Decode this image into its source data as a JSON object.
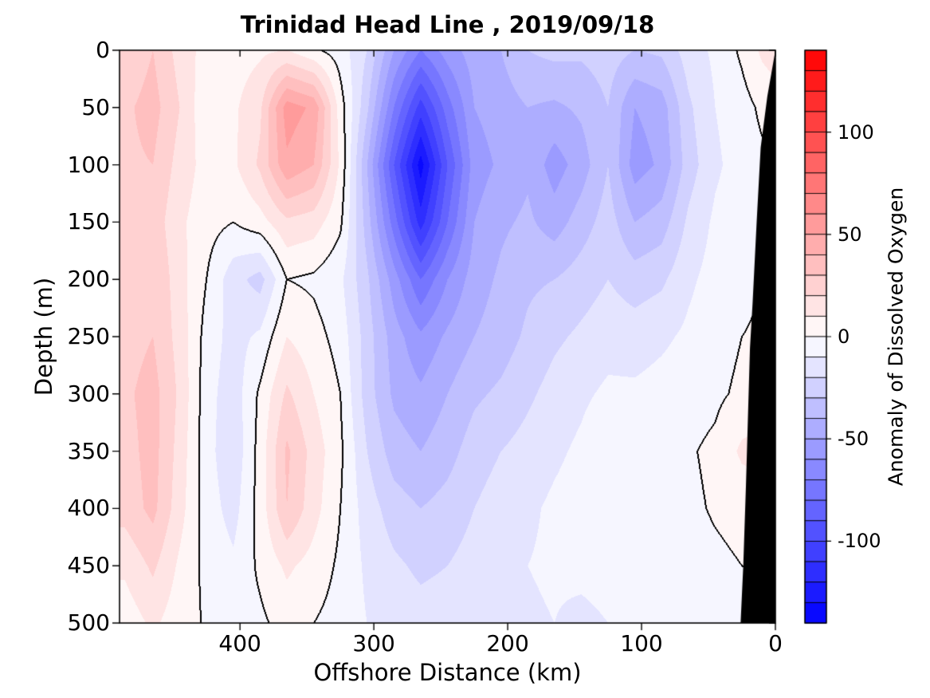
{
  "title": "Trinidad Head Line , 2019/09/18",
  "axes": {
    "xlabel": "Offshore Distance (km)",
    "ylabel": "Depth (m)",
    "x_tick_labels": [
      "400",
      "300",
      "200",
      "100",
      "0"
    ],
    "x_tick_values": [
      400,
      300,
      200,
      100,
      0
    ],
    "y_tick_labels": [
      "0",
      "50",
      "100",
      "150",
      "200",
      "250",
      "300",
      "350",
      "400",
      "450",
      "500"
    ],
    "y_tick_values": [
      0,
      50,
      100,
      150,
      200,
      250,
      300,
      350,
      400,
      450,
      500
    ]
  },
  "colorbar": {
    "label": "Anomaly of Dissolved Oxygen",
    "tick_labels": [
      "100",
      "50",
      "0",
      "-50",
      "-100"
    ],
    "tick_values": [
      100,
      50,
      0,
      -50,
      -100
    ],
    "vmin": -140,
    "vmax": 140,
    "step": 10,
    "n_segments": 28,
    "positive_color": "#ff0000",
    "negative_color": "#0000ff",
    "zero_color": "#ffffff",
    "border_color": "#000000"
  },
  "chart_data": {
    "type": "heatmap",
    "subtype": "filled_contour_section",
    "title": "Trinidad Head Line , 2019/09/18",
    "xlabel": "Offshore Distance (km)",
    "ylabel": "Depth (m)",
    "zlabel": "Anomaly of Dissolved Oxygen",
    "xlim": [
      490,
      0
    ],
    "ylim": [
      0,
      500
    ],
    "x_axis_reversed": true,
    "depth_axis_down": true,
    "contour_interval": 10,
    "contour_line_levels": [
      0
    ],
    "contour_line_color": "#000000",
    "land_color": "#000000",
    "x_km": [
      486,
      465,
      445,
      425,
      405,
      385,
      365,
      345,
      325,
      305,
      285,
      265,
      245,
      225,
      205,
      185,
      165,
      145,
      125,
      105,
      85,
      65,
      45,
      25,
      10,
      0
    ],
    "depths_m": [
      0,
      50,
      100,
      150,
      200,
      250,
      300,
      350,
      400,
      450,
      500
    ],
    "values": [
      [
        22,
        30,
        16,
        6,
        5,
        8,
        10,
        2,
        -5,
        -20,
        -50,
        -70,
        -55,
        -45,
        -40,
        -30,
        -27,
        -28,
        -25,
        -30,
        -28,
        -15,
        -8,
        2,
        12,
        15
      ],
      [
        28,
        34,
        20,
        2,
        8,
        18,
        55,
        48,
        5,
        -28,
        -70,
        -105,
        -75,
        -50,
        -45,
        -40,
        -42,
        -38,
        -30,
        -50,
        -45,
        -22,
        -10,
        -4,
        2,
        5
      ],
      [
        28,
        30,
        16,
        6,
        8,
        22,
        48,
        40,
        8,
        -40,
        -90,
        -135,
        -90,
        -55,
        -48,
        -42,
        -55,
        -45,
        -30,
        -55,
        -48,
        -25,
        -12,
        -5,
        -2,
        0
      ],
      [
        22,
        26,
        12,
        4,
        0,
        6,
        18,
        15,
        2,
        -35,
        -75,
        -115,
        -80,
        -50,
        -42,
        -38,
        -45,
        -35,
        -25,
        -40,
        -35,
        -18,
        -8,
        -3,
        -1,
        0
      ],
      [
        26,
        30,
        14,
        0,
        -16,
        -24,
        0,
        -2,
        -8,
        -28,
        -55,
        -80,
        -60,
        -45,
        -38,
        -32,
        -30,
        -25,
        -20,
        -25,
        -22,
        -12,
        -6,
        -2,
        0,
        0
      ],
      [
        26,
        30,
        16,
        -4,
        -14,
        -8,
        10,
        4,
        -4,
        -25,
        -45,
        -58,
        -48,
        -40,
        -35,
        -28,
        -22,
        -18,
        -14,
        -15,
        -12,
        -8,
        -4,
        0,
        1,
        2
      ],
      [
        28,
        34,
        18,
        -6,
        -16,
        2,
        22,
        10,
        0,
        -25,
        -42,
        -48,
        -40,
        -32,
        -28,
        -22,
        -16,
        -12,
        -8,
        -8,
        -6,
        -4,
        -2,
        2,
        3,
        4
      ],
      [
        26,
        34,
        16,
        -6,
        -18,
        4,
        32,
        16,
        2,
        -20,
        -35,
        -40,
        -34,
        -25,
        -20,
        -16,
        -12,
        -8,
        -1,
        -1,
        -2,
        -1,
        2,
        12,
        14,
        8
      ],
      [
        24,
        33,
        14,
        -5,
        -14,
        4,
        30,
        14,
        0,
        -15,
        -25,
        -30,
        -26,
        -20,
        -15,
        -12,
        -8,
        -5,
        0,
        -2,
        -2,
        -2,
        1,
        3,
        4,
        3
      ],
      [
        12,
        22,
        8,
        -3,
        -8,
        2,
        12,
        6,
        -2,
        -12,
        -18,
        -22,
        -20,
        -16,
        -13,
        -10,
        -8,
        -6,
        -4,
        -4,
        -4,
        -4,
        -2,
        0,
        1,
        1
      ],
      [
        4,
        12,
        4,
        -1,
        -4,
        -2,
        4,
        0,
        -4,
        -10,
        -14,
        -16,
        -15,
        -14,
        -12,
        -12,
        -10,
        -14,
        -10,
        -8,
        -8,
        -8,
        -6,
        -4,
        -2,
        0
      ]
    ],
    "land_polygon_km_depth": [
      [
        0,
        0
      ],
      [
        6,
        40
      ],
      [
        11,
        85
      ],
      [
        14,
        150
      ],
      [
        17,
        220
      ],
      [
        19,
        260
      ],
      [
        22,
        380
      ],
      [
        24,
        450
      ],
      [
        26,
        500
      ],
      [
        0,
        500
      ]
    ]
  }
}
